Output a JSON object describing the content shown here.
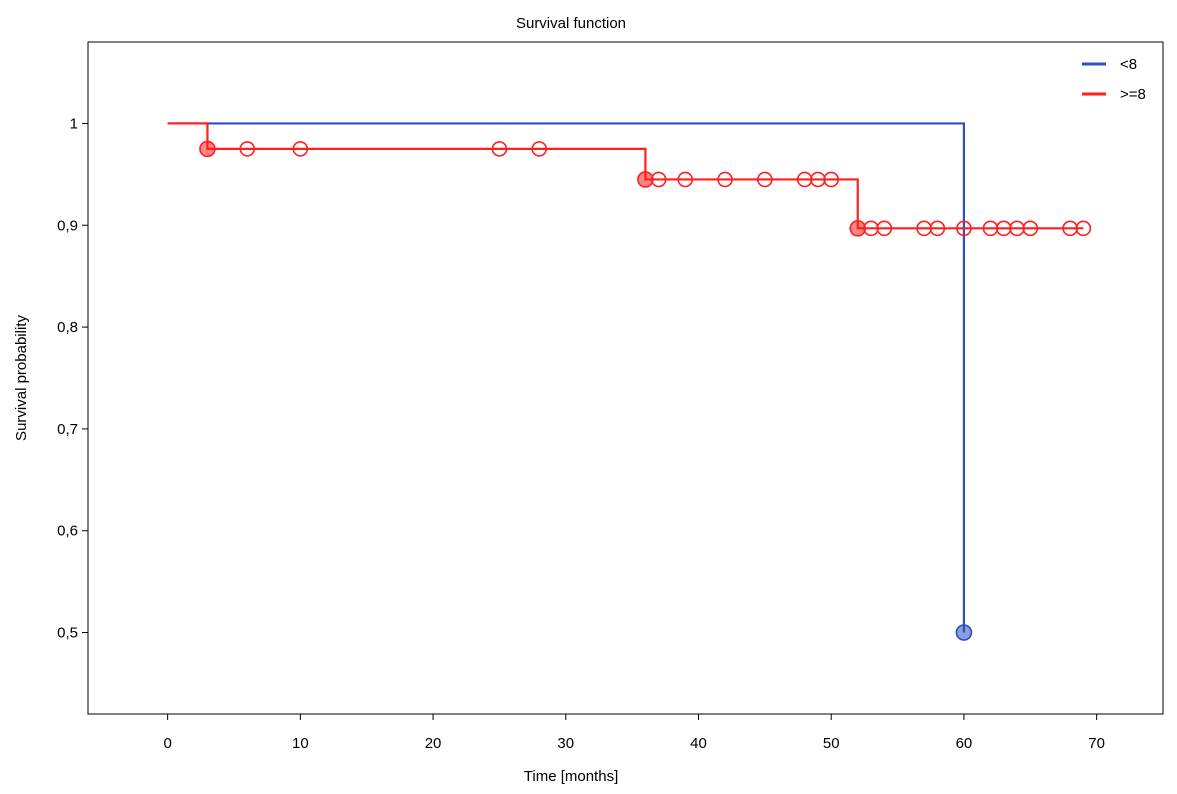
{
  "chart_data": {
    "type": "line",
    "subtype": "kaplan-meier-step",
    "title": "Survival function",
    "xlabel": "Time [months]",
    "ylabel": "Survival probability",
    "xlim": [
      -6,
      75
    ],
    "ylim": [
      0.42,
      1.08
    ],
    "xticks": [
      0,
      10,
      20,
      30,
      40,
      50,
      60,
      70
    ],
    "xtick_labels": [
      "0",
      "10",
      "20",
      "30",
      "40",
      "50",
      "60",
      "70"
    ],
    "yticks": [
      0.5,
      0.6,
      0.7,
      0.8,
      0.9,
      1.0
    ],
    "ytick_labels": [
      "0,5",
      "0,6",
      "0,7",
      "0,8",
      "0,9",
      "1"
    ],
    "grid": false,
    "legend_position": "top-right",
    "series": [
      {
        "name": "<8",
        "color": "#2a4fc4",
        "steps": [
          [
            0,
            1.0
          ],
          [
            60,
            0.5
          ]
        ],
        "end_x": 60,
        "events": [
          [
            60,
            0.5
          ]
        ],
        "censored": []
      },
      {
        "name": ">=8",
        "color": "#ff1f1f",
        "steps": [
          [
            0,
            1.0
          ],
          [
            3,
            0.975
          ],
          [
            36,
            0.945
          ],
          [
            52,
            0.897
          ]
        ],
        "end_x": 69,
        "events": [
          [
            3,
            0.975
          ],
          [
            36,
            0.945
          ],
          [
            52,
            0.897
          ]
        ],
        "censored": [
          [
            6,
            0.975
          ],
          [
            10,
            0.975
          ],
          [
            25,
            0.975
          ],
          [
            28,
            0.975
          ],
          [
            37,
            0.945
          ],
          [
            39,
            0.945
          ],
          [
            42,
            0.945
          ],
          [
            45,
            0.945
          ],
          [
            48,
            0.945
          ],
          [
            49,
            0.945
          ],
          [
            50,
            0.945
          ],
          [
            53,
            0.897
          ],
          [
            54,
            0.897
          ],
          [
            57,
            0.897
          ],
          [
            58,
            0.897
          ],
          [
            60,
            0.897
          ],
          [
            62,
            0.897
          ],
          [
            63,
            0.897
          ],
          [
            64,
            0.897
          ],
          [
            65,
            0.897
          ],
          [
            68,
            0.897
          ],
          [
            69,
            0.897
          ]
        ]
      }
    ]
  }
}
